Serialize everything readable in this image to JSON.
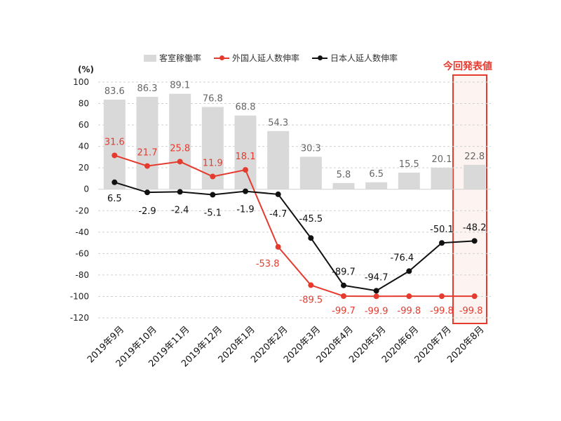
{
  "chart_data": {
    "type": "bar+line",
    "unit_label": "(%)",
    "highlight_label": "今回発表値",
    "categories": [
      "2019年9月",
      "2019年10月",
      "2019年11月",
      "2019年12月",
      "2020年1月",
      "2020年2月",
      "2020年3月",
      "2020年4月",
      "2020年5月",
      "2020年6月",
      "2020年7月",
      "2020年8月"
    ],
    "ylim": [
      -120,
      100
    ],
    "yticks": [
      "100",
      "80",
      "60",
      "40",
      "20",
      "0",
      "-20",
      "-40",
      "-60",
      "-80",
      "-100",
      "-120"
    ],
    "legend_position": "top",
    "grid": true,
    "series": [
      {
        "name": "客室稼働率",
        "kind": "bar",
        "color": "#d9d9d9",
        "label_color": "#666666",
        "values": [
          83.6,
          86.3,
          89.1,
          76.8,
          68.8,
          54.3,
          30.3,
          5.8,
          6.5,
          15.5,
          20.1,
          22.8
        ],
        "labels": [
          "83.6",
          "86.3",
          "89.1",
          "76.8",
          "68.8",
          "54.3",
          "30.3",
          "5.8",
          "6.5",
          "15.5",
          "20.1",
          "22.8"
        ]
      },
      {
        "name": "外国人延人数伸率",
        "kind": "line",
        "color": "#e53b2f",
        "label_color": "#e53b2f",
        "values": [
          31.6,
          21.7,
          25.8,
          11.9,
          18.1,
          -53.8,
          -89.5,
          -99.7,
          -99.9,
          -99.8,
          -99.8,
          -99.8
        ],
        "labels": [
          "31.6",
          "21.7",
          "25.8",
          "11.9",
          "18.1",
          "-53.8",
          "-89.5",
          "-99.7",
          "-99.9",
          "-99.8",
          "-99.8",
          "-99.8"
        ]
      },
      {
        "name": "日本人延人数伸率",
        "kind": "line",
        "color": "#111111",
        "label_color": "#111111",
        "values": [
          6.5,
          -2.9,
          -2.4,
          -5.1,
          -1.9,
          -4.7,
          -45.5,
          -89.7,
          -94.7,
          -76.4,
          -50.1,
          -48.2
        ],
        "labels": [
          "6.5",
          "-2.9",
          "-2.4",
          "-5.1",
          "-1.9",
          "-4.7",
          "-45.5",
          "-89.7",
          "-94.7",
          "-76.4",
          "-50.1",
          "-48.2"
        ]
      }
    ]
  }
}
